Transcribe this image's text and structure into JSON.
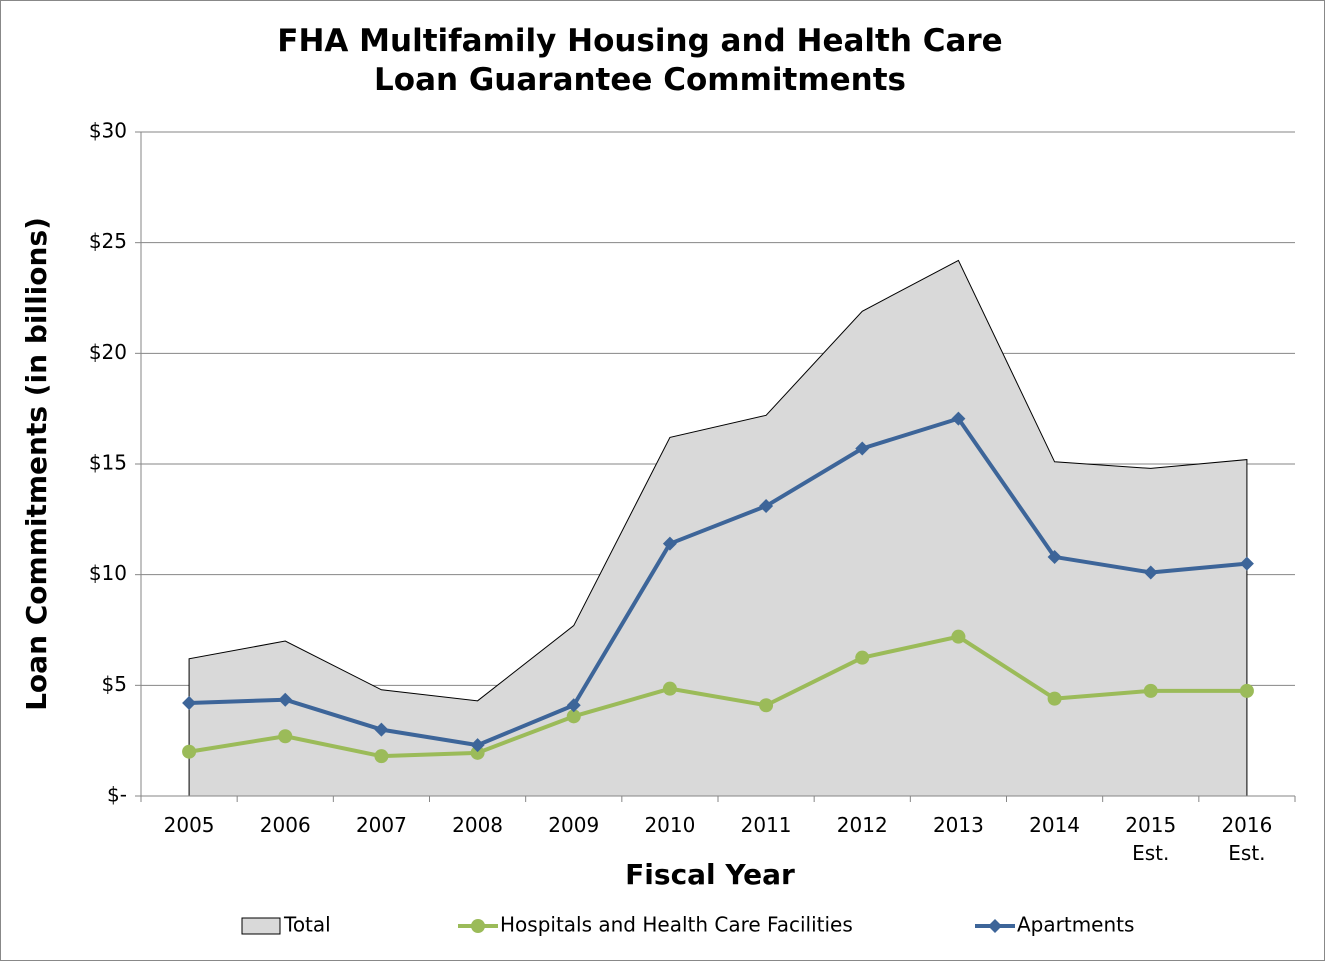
{
  "chart_data": {
    "type": "area-line",
    "title": "FHA Multifamily Housing and Health Care\nLoan Guarantee Commitments",
    "x_label": "Fiscal Year",
    "y_label": "Loan Commitments (in billions)",
    "categories": [
      "2005",
      "2006",
      "2007",
      "2008",
      "2009",
      "2010",
      "2011",
      "2012",
      "2013",
      "2014",
      "2015\nEst.",
      "2016\nEst."
    ],
    "series": [
      {
        "name": "Total",
        "kind": "area",
        "color": "#d9d9d9",
        "values": [
          6.2,
          7.0,
          4.8,
          4.3,
          7.7,
          16.2,
          17.2,
          21.9,
          24.2,
          15.1,
          14.8,
          15.2
        ]
      },
      {
        "name": "Hospitals and Health Care Facilities",
        "kind": "line",
        "marker": "circle",
        "color": "#9bbb59",
        "values": [
          2.0,
          2.7,
          1.8,
          1.95,
          3.6,
          4.85,
          4.1,
          6.25,
          7.2,
          4.4,
          4.75,
          4.75
        ]
      },
      {
        "name": "Apartments",
        "kind": "line",
        "marker": "diamond",
        "color": "#3d6599",
        "values": [
          4.2,
          4.35,
          3.0,
          2.3,
          4.1,
          11.4,
          13.1,
          15.7,
          17.05,
          10.8,
          10.1,
          10.5
        ]
      }
    ],
    "ylim": [
      0,
      30
    ],
    "yticks": [
      {
        "value": 0,
        "label": "$-"
      },
      {
        "value": 5,
        "label": "$5"
      },
      {
        "value": 10,
        "label": "$10"
      },
      {
        "value": 15,
        "label": "$15"
      },
      {
        "value": 20,
        "label": "$20"
      },
      {
        "value": 25,
        "label": "$25"
      },
      {
        "value": 30,
        "label": "$30"
      }
    ],
    "grid": true,
    "legend": "bottom"
  }
}
